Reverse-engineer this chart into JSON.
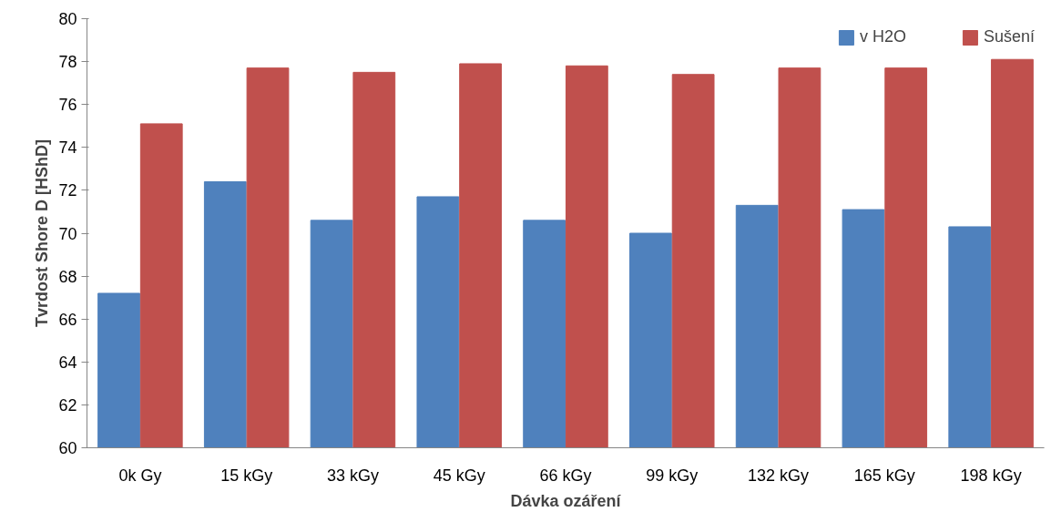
{
  "chart_data": {
    "type": "bar",
    "xlabel": "Dávka ozáření",
    "ylabel": "Tvrdost Shore D [HShD]",
    "categories": [
      "0k Gy",
      "15 kGy",
      "33 kGy",
      "45 kGy",
      "66 kGy",
      "99 kGy",
      "132 kGy",
      "165 kGy",
      "198 kGy"
    ],
    "series": [
      {
        "name": "v H2O",
        "color": "#4f81bd",
        "values": [
          67.2,
          72.4,
          70.6,
          71.7,
          70.6,
          70.0,
          71.3,
          71.1,
          70.3
        ]
      },
      {
        "name": "Sušení",
        "color": "#c0504d",
        "values": [
          75.1,
          77.7,
          77.5,
          77.9,
          77.8,
          77.4,
          77.7,
          77.7,
          78.1
        ]
      }
    ],
    "ylim": [
      60,
      80
    ],
    "yticks": [
      60,
      62,
      64,
      66,
      68,
      70,
      72,
      74,
      76,
      78,
      80
    ],
    "grid": false,
    "legend": "top right"
  }
}
